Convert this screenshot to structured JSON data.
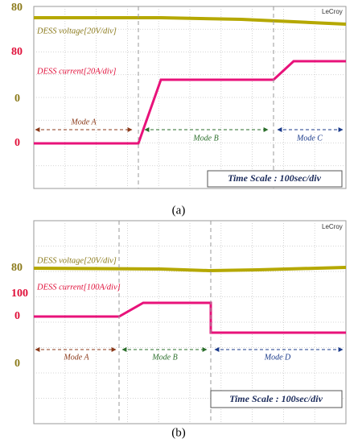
{
  "panels": [
    {
      "brand": "LeCroy",
      "voltage_label": "DESS voltage[20V/div]",
      "current_label": "DESS current[20A/div]",
      "axis_labels": [
        "80",
        "80",
        "0",
        "0"
      ],
      "modes": [
        "Mode A",
        "Mode B",
        "Mode C"
      ],
      "time_scale": "Time Scale : 100sec/div",
      "caption": "(a)"
    },
    {
      "brand": "LeCroy",
      "voltage_label": "DESS voltage[20V/div]",
      "current_label": "DESS current[100A/div]",
      "axis_labels": [
        "80",
        "100",
        "0",
        "0"
      ],
      "modes": [
        "Mode A",
        "Mode B",
        "Mode D"
      ],
      "time_scale": "Time Scale : 100sec/div",
      "caption": "(b)"
    }
  ]
}
